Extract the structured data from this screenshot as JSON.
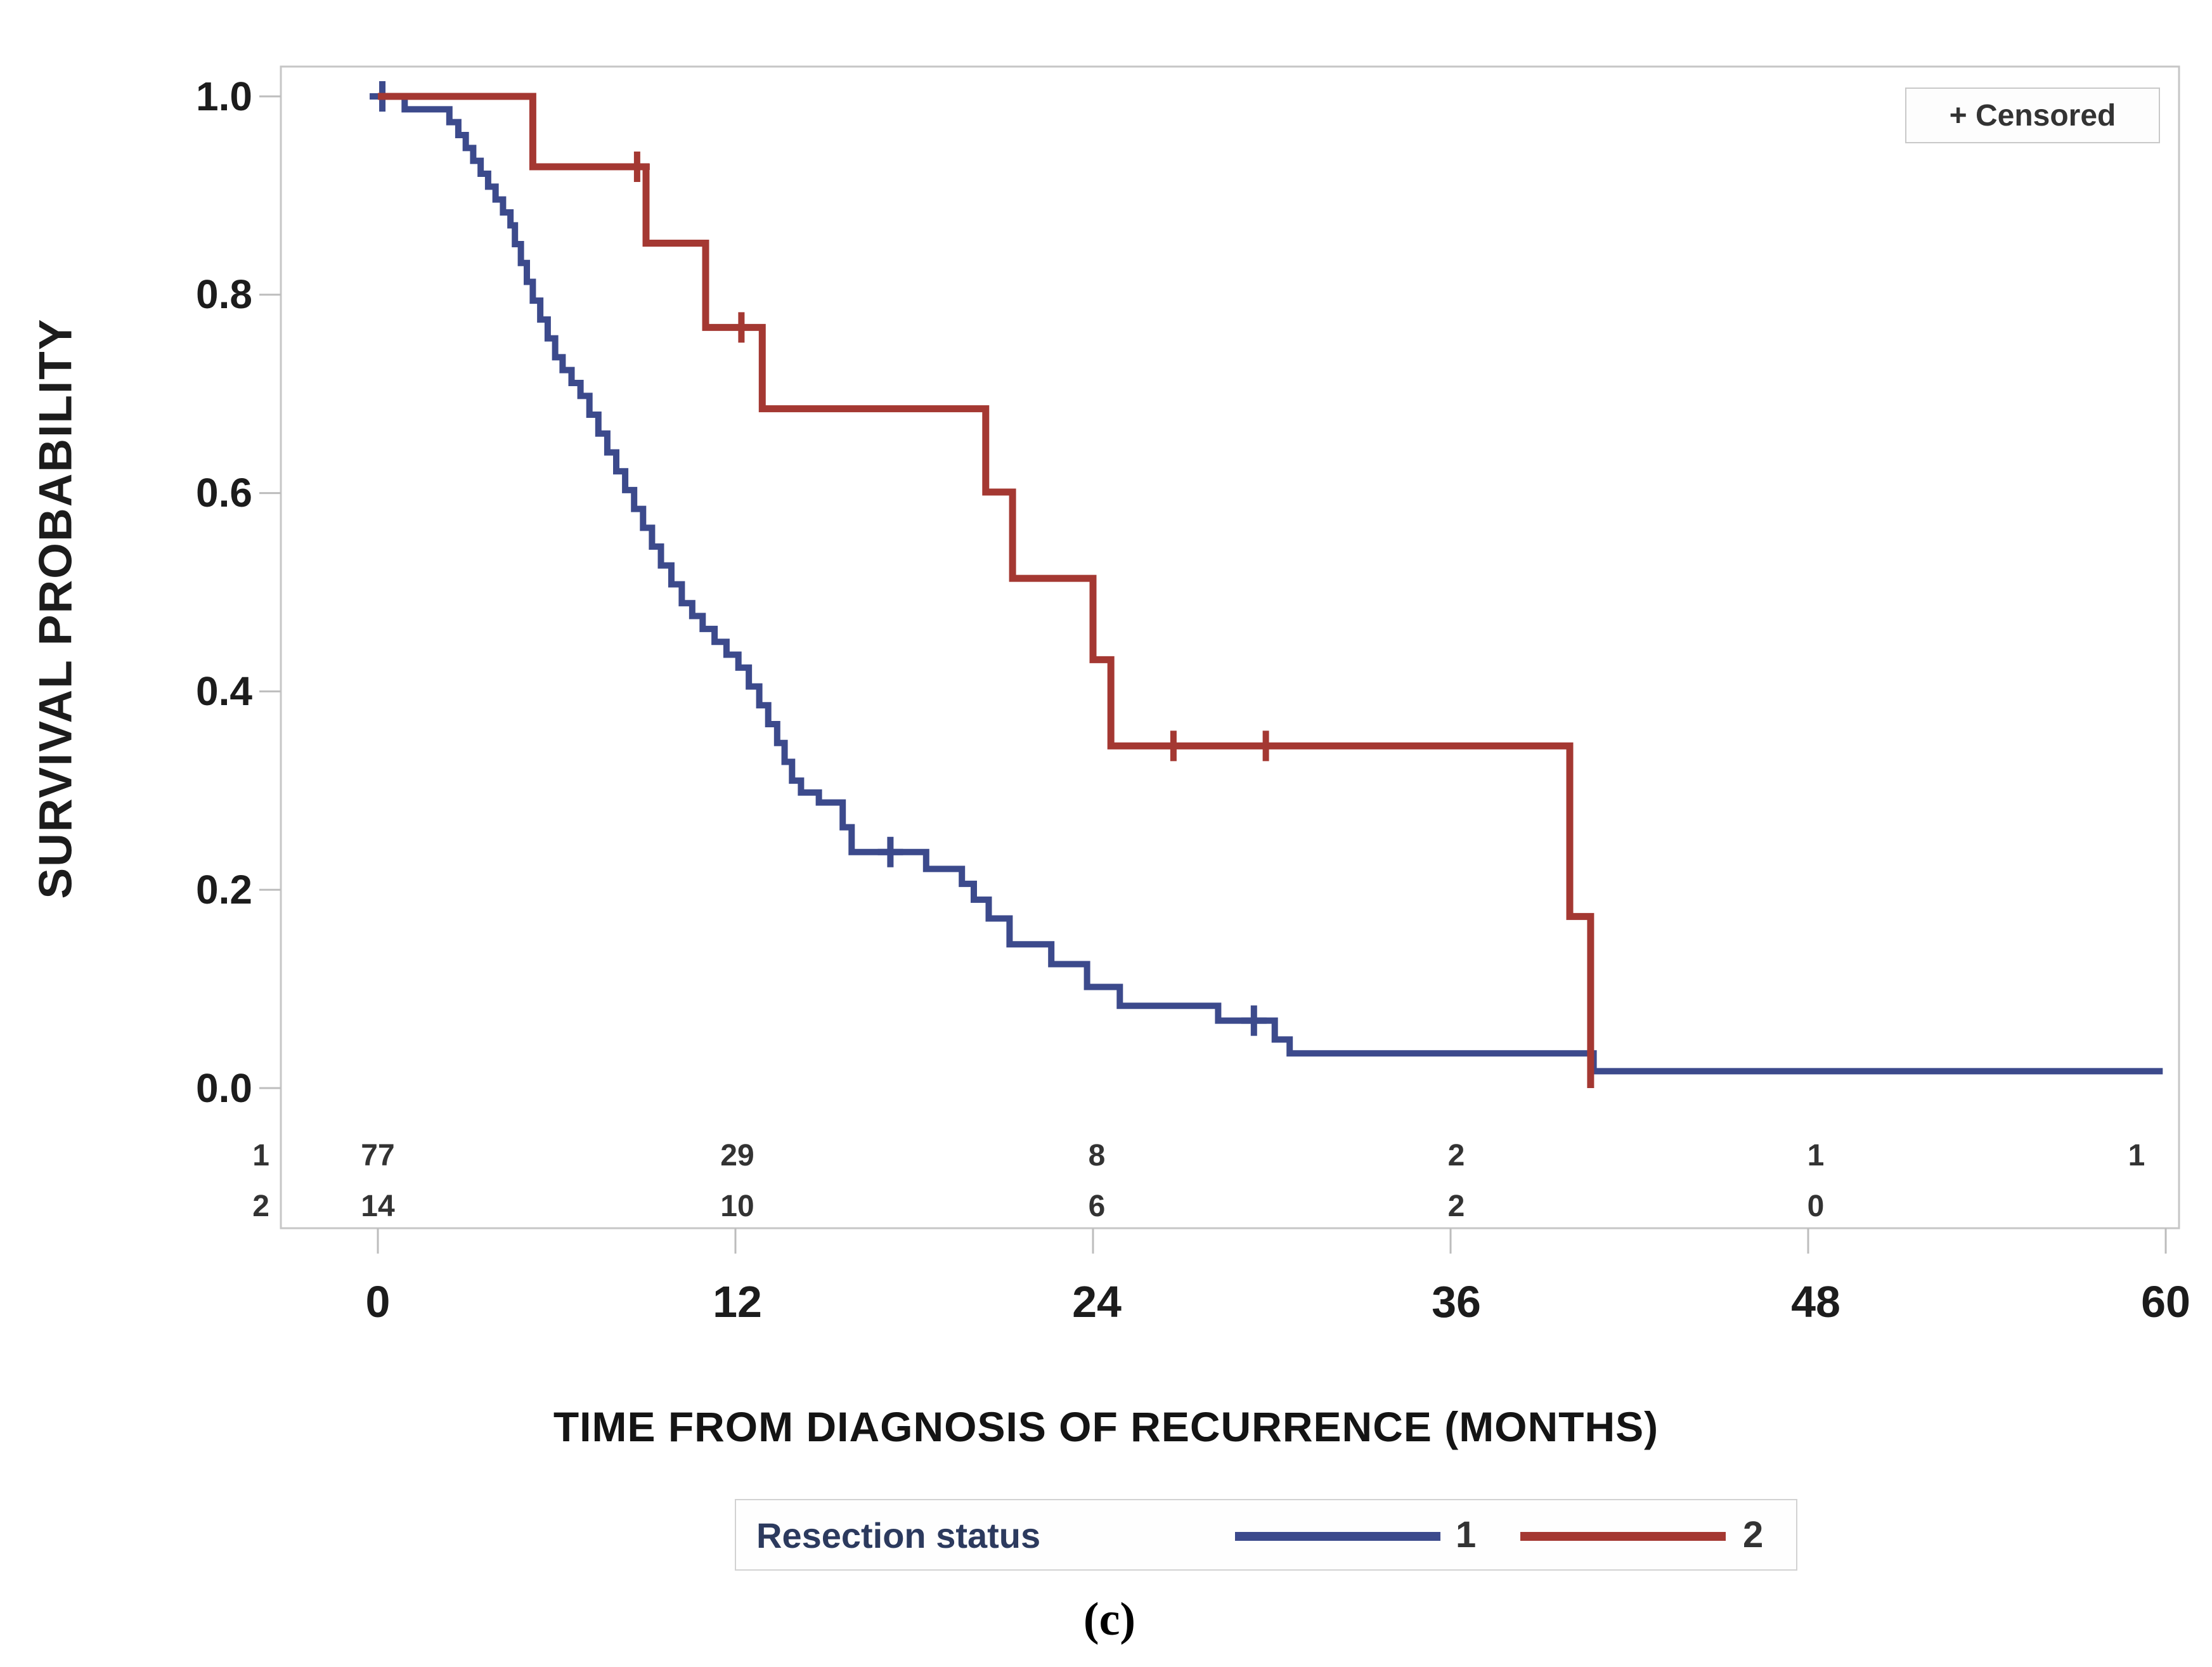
{
  "chart_data": {
    "type": "line",
    "subtype": "kaplan-meier-step",
    "title": "",
    "xlabel": "TIME FROM DIAGNOSIS OF RECURRENCE (MONTHS)",
    "ylabel": "SURVIVAL PROBABILITY",
    "xlim": [
      0,
      60
    ],
    "ylim": [
      0.0,
      1.0
    ],
    "grid": false,
    "x_tick_labels": [
      "0",
      "12",
      "24",
      "36",
      "48",
      "60"
    ],
    "x_tick_values": [
      0,
      12,
      24,
      36,
      48,
      60
    ],
    "y_tick_labels": [
      "1.0",
      "0.8",
      "0.6",
      "0.4",
      "0.2",
      "0.0"
    ],
    "y_tick_values": [
      1.0,
      0.8,
      0.6,
      0.4,
      0.2,
      0.0
    ],
    "censored_marker_legend": "+ Censored",
    "series": [
      {
        "name": "1",
        "color": "#3c4a8c",
        "end_time": 59.9,
        "steps": [
          [
            0,
            1.0
          ],
          [
            0.9,
            0.987
          ],
          [
            2.4,
            0.974
          ],
          [
            2.7,
            0.961
          ],
          [
            2.95,
            0.948
          ],
          [
            3.2,
            0.935
          ],
          [
            3.45,
            0.922
          ],
          [
            3.7,
            0.909
          ],
          [
            3.95,
            0.896
          ],
          [
            4.2,
            0.883
          ],
          [
            4.45,
            0.87
          ],
          [
            4.6,
            0.851
          ],
          [
            4.8,
            0.832
          ],
          [
            5.0,
            0.813
          ],
          [
            5.2,
            0.794
          ],
          [
            5.45,
            0.775
          ],
          [
            5.7,
            0.756
          ],
          [
            5.95,
            0.737
          ],
          [
            6.2,
            0.724
          ],
          [
            6.5,
            0.711
          ],
          [
            6.8,
            0.698
          ],
          [
            7.1,
            0.679
          ],
          [
            7.4,
            0.66
          ],
          [
            7.7,
            0.641
          ],
          [
            8.0,
            0.622
          ],
          [
            8.3,
            0.603
          ],
          [
            8.6,
            0.584
          ],
          [
            8.9,
            0.565
          ],
          [
            9.2,
            0.546
          ],
          [
            9.5,
            0.527
          ],
          [
            9.85,
            0.508
          ],
          [
            10.2,
            0.489
          ],
          [
            10.55,
            0.476
          ],
          [
            10.9,
            0.463
          ],
          [
            11.3,
            0.45
          ],
          [
            11.7,
            0.437
          ],
          [
            12.1,
            0.424
          ],
          [
            12.45,
            0.405
          ],
          [
            12.8,
            0.386
          ],
          [
            13.1,
            0.367
          ],
          [
            13.4,
            0.348
          ],
          [
            13.65,
            0.329
          ],
          [
            13.9,
            0.31
          ],
          [
            14.2,
            0.298
          ],
          [
            14.8,
            0.288
          ],
          [
            15.6,
            0.263
          ],
          [
            15.9,
            0.238
          ],
          [
            18.4,
            0.221
          ],
          [
            19.6,
            0.206
          ],
          [
            20.0,
            0.19
          ],
          [
            20.5,
            0.171
          ],
          [
            21.2,
            0.145
          ],
          [
            22.6,
            0.125
          ],
          [
            23.8,
            0.102
          ],
          [
            24.9,
            0.083
          ],
          [
            28.2,
            0.068
          ],
          [
            30.1,
            0.049
          ],
          [
            30.6,
            0.035
          ],
          [
            40.8,
            0.017
          ]
        ],
        "censors": [
          [
            0.15,
            1.0
          ],
          [
            17.2,
            0.238
          ],
          [
            29.4,
            0.068
          ]
        ]
      },
      {
        "name": "2",
        "color": "#a43832",
        "end_time": 40.7,
        "steps": [
          [
            0,
            1.0
          ],
          [
            5.2,
            0.929
          ],
          [
            9.0,
            0.852
          ],
          [
            11.0,
            0.767
          ],
          [
            12.9,
            0.685
          ],
          [
            20.4,
            0.601
          ],
          [
            21.3,
            0.514
          ],
          [
            24.0,
            0.432
          ],
          [
            24.6,
            0.345
          ],
          [
            40.0,
            0.173
          ],
          [
            40.7,
            0.0
          ]
        ],
        "censors": [
          [
            8.7,
            0.929
          ],
          [
            12.2,
            0.767
          ],
          [
            26.7,
            0.345
          ],
          [
            29.8,
            0.345
          ]
        ]
      }
    ],
    "at_risk_table": {
      "rows": [
        {
          "label": "1",
          "values": [
            "77",
            "29",
            "8",
            "2",
            "1",
            "1"
          ],
          "times": [
            0,
            12,
            24,
            36,
            48,
            60
          ]
        },
        {
          "label": "2",
          "values": [
            "14",
            "10",
            "6",
            "2",
            "0"
          ],
          "times": [
            0,
            12,
            24,
            36,
            48
          ]
        }
      ]
    },
    "legend_position": "bottom"
  },
  "legend": {
    "title": "Resection status",
    "entries": [
      {
        "label": "1",
        "color": "#3c4a8c"
      },
      {
        "label": "2",
        "color": "#a43832"
      }
    ]
  },
  "caption": "(c)",
  "colors": {
    "series1_blue": "#3c4a8c",
    "series2_red": "#a43832",
    "frame_gray": "#c6c6c6",
    "text_dark": "#1c1c1c"
  }
}
